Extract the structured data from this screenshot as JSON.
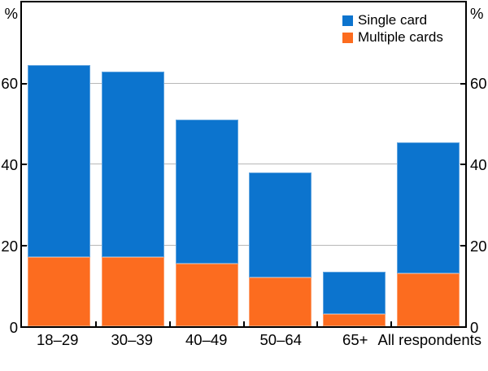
{
  "chart_data": {
    "type": "bar",
    "stacked": true,
    "title": "",
    "unit": "%",
    "categories": [
      "18–29",
      "30–39",
      "40–49",
      "50–64",
      "65+",
      "All respondents"
    ],
    "series": [
      {
        "name": "Single card",
        "color": "#0c74ce",
        "values": [
          47.5,
          46,
          35.5,
          26,
          10.5,
          32.5
        ]
      },
      {
        "name": "Multiple cards",
        "color": "#fc6c1f",
        "values": [
          17,
          17,
          15.5,
          12,
          3,
          13
        ]
      }
    ],
    "stack_order_bottom_to_top": [
      "Multiple cards",
      "Single card"
    ],
    "totals": [
      64.5,
      63,
      51,
      38,
      13.5,
      45.5
    ],
    "xlabel": "",
    "ylabel": "%",
    "ylim": [
      0,
      80
    ],
    "yticks": [
      0,
      20,
      40,
      60
    ],
    "grid": true,
    "grid_color": "#b7b7b7",
    "frame_color": "#000000",
    "legend_position": "top-right"
  }
}
